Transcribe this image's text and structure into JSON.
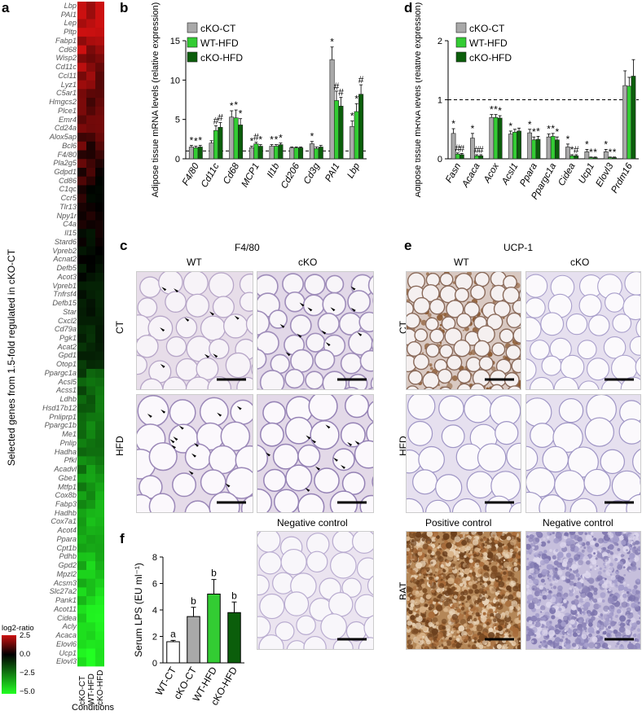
{
  "panel_a": {
    "letter": "a",
    "ylabel": "Selected genes from 1.5-fold regulated in cKO-CT",
    "xlabel": "Conditions",
    "columns": [
      "cKO-CT",
      "WT-HFD",
      "cKO-HFD"
    ],
    "genes": [
      "Lbp",
      "PAI1",
      "Lep",
      "Pltp",
      "Fabp1",
      "Cd68",
      "Wisp2",
      "Cd11c",
      "Ccl11",
      "Lyz1",
      "C5ar1",
      "Hmgcs2",
      "Plce1",
      "Emr4",
      "Cd24a",
      "Alox5ap",
      "Bcl6",
      "F4/80",
      "Pla2g5",
      "Gdpd1",
      "Cd86",
      "C1qc",
      "Ccr5",
      "Tlr13",
      "Npy1r",
      "C4a",
      "Il15",
      "Stard6",
      "Vpreb2",
      "Acnat2",
      "Defb5",
      "Acot3",
      "Vpreb1",
      "Tnfrsf4",
      "Defb15",
      "Star",
      "Cxcl2",
      "Cd79a",
      "Pgk1",
      "Acat2",
      "Gpd1",
      "Otop1",
      "Ppargc1a",
      "Acsl5",
      "Acss1",
      "Ldhb",
      "Hsd17b12",
      "Pnliprp1",
      "Ppargc1b",
      "Me1",
      "Pnlip",
      "Hadha",
      "Pfkl",
      "Acadvl",
      "Gbe1",
      "Mtfp1",
      "Cox8b",
      "Fabp3",
      "Hadhb",
      "Cox7a1",
      "Acot4",
      "Ppara",
      "Cpt1b",
      "Pdhb",
      "Gpd2",
      "Mpzl2",
      "Acsm3",
      "Slc27a2",
      "Pank1",
      "Acot11",
      "Cidea",
      "Acly",
      "Acaca",
      "Elovl6",
      "Ucp1",
      "Elovl3"
    ],
    "legend": {
      "title": "log2-ratio",
      "ticks": [
        "2.5",
        "0.0",
        "−2.5",
        "−5.0"
      ]
    },
    "colors": {
      "up": "#cc1010",
      "zero": "#000000",
      "down": "#22ff22"
    }
  },
  "panel_b": {
    "letter": "b",
    "ylabel": "Adipose tissue mRNA levels (relative expression)",
    "legend": [
      "cKO-CT",
      "WT-HFD",
      "cKO-HFD"
    ],
    "chart_data": {
      "type": "bar",
      "ylim": [
        0,
        15
      ],
      "yticks": [
        "0",
        "5",
        "10",
        "15"
      ],
      "categories": [
        "F4/80",
        "Cd11c",
        "Cd68",
        "MCP1",
        "Il1b",
        "Cd206",
        "Cd3g",
        "PAI1",
        "Lbp"
      ],
      "series": [
        {
          "name": "cKO-CT",
          "values": [
            1.5,
            2.0,
            5.3,
            1.4,
            1.6,
            1.4,
            1.9,
            12.6,
            4.1
          ],
          "err": [
            0.2,
            0.3,
            0.8,
            0.2,
            0.2,
            0.1,
            0.3,
            1.6,
            0.7
          ]
        },
        {
          "name": "WT-HFD",
          "values": [
            1.4,
            3.6,
            5.2,
            1.9,
            1.6,
            1.4,
            1.3,
            7.4,
            6.0
          ],
          "err": [
            0.2,
            0.6,
            1.0,
            0.2,
            0.2,
            0.1,
            0.2,
            1.2,
            1.0
          ]
        },
        {
          "name": "cKO-HFD",
          "values": [
            1.5,
            4.0,
            4.3,
            1.6,
            1.8,
            1.4,
            1.5,
            6.7,
            8.2
          ],
          "err": [
            0.2,
            0.6,
            0.8,
            0.2,
            0.2,
            0.1,
            0.2,
            1.1,
            1.2
          ]
        }
      ],
      "sig": [
        [
          "*",
          "*",
          "*"
        ],
        [
          "",
          "#",
          "#"
        ],
        [
          "*",
          "*",
          "*"
        ],
        [
          "*",
          "#",
          "*"
        ],
        [
          "*",
          "*",
          "*"
        ],
        [
          "",
          "",
          ""
        ],
        [
          "*",
          "",
          ""
        ],
        [
          "*",
          "#",
          "#"
        ],
        [
          "*",
          "*",
          "#"
        ]
      ],
      "reference_line": 1,
      "colors": [
        "#a9a9a9",
        "#33cc33",
        "#0b5e0b"
      ]
    }
  },
  "panel_d": {
    "letter": "d",
    "ylabel": "Adipose tissue mRNA levels (relative expression)",
    "legend": [
      "cKO-CT",
      "WT-HFD",
      "cKO-HFD"
    ],
    "chart_data": {
      "type": "bar",
      "ylim": [
        0,
        2
      ],
      "yticks": [
        "0",
        "1",
        "2"
      ],
      "categories": [
        "Fasn",
        "Acaca",
        "Acox",
        "Acsl1",
        "Ppara",
        "Ppargc1a",
        "Cidea",
        "Ucp1",
        "Elovl3",
        "Prdm16"
      ],
      "series": [
        {
          "name": "cKO-CT",
          "values": [
            0.43,
            0.35,
            0.7,
            0.42,
            0.44,
            0.37,
            0.2,
            0.12,
            0.12,
            1.24
          ],
          "err": [
            0.08,
            0.08,
            0.05,
            0.05,
            0.06,
            0.05,
            0.05,
            0.04,
            0.04,
            0.25
          ]
        },
        {
          "name": "WT-HFD",
          "values": [
            0.08,
            0.05,
            0.7,
            0.45,
            0.32,
            0.38,
            0.05,
            0.02,
            0.02,
            1.23
          ],
          "err": [
            0.02,
            0.02,
            0.05,
            0.05,
            0.05,
            0.05,
            0.02,
            0.01,
            0.01,
            0.15
          ]
        },
        {
          "name": "cKO-HFD",
          "values": [
            0.07,
            0.05,
            0.69,
            0.47,
            0.33,
            0.32,
            0.05,
            0.02,
            0.02,
            1.4
          ],
          "err": [
            0.02,
            0.02,
            0.04,
            0.05,
            0.05,
            0.05,
            0.02,
            0.01,
            0.01,
            0.28
          ]
        }
      ],
      "sig": [
        [
          "*",
          "#",
          "#"
        ],
        [
          "*",
          "#",
          "#"
        ],
        [
          "*",
          "*",
          "*"
        ],
        [
          "*",
          "",
          ""
        ],
        [
          "*",
          "*",
          "*"
        ],
        [
          "*",
          "*",
          "*"
        ],
        [
          "*",
          "*",
          "#"
        ],
        [
          "*",
          "*",
          "*"
        ],
        [
          "*",
          "*",
          "*"
        ],
        [
          "",
          "",
          ""
        ]
      ],
      "reference_line": 1,
      "colors": [
        "#a9a9a9",
        "#33cc33",
        "#0b5e0b"
      ]
    }
  },
  "panel_c": {
    "letter": "c",
    "title": "F4/80",
    "col_labels": [
      "WT",
      "cKO"
    ],
    "row_labels": [
      "CT",
      "HFD"
    ],
    "neg_control": "Negative control"
  },
  "panel_e": {
    "letter": "e",
    "title": "UCP-1",
    "col_labels": [
      "WT",
      "cKO"
    ],
    "row_labels": [
      "CT",
      "HFD",
      "BAT"
    ],
    "pos_control": "Positive control",
    "neg_control": "Negative control"
  },
  "panel_f": {
    "letter": "f",
    "ylabel": "Serum LPS (EU ml⁻¹)",
    "chart_data": {
      "type": "bar",
      "ylim": [
        0,
        8
      ],
      "yticks": [
        "0",
        "2",
        "4",
        "6",
        "8"
      ],
      "categories": [
        "WT-CT",
        "cKO-CT",
        "WT-HFD",
        "cKO-HFD"
      ],
      "values": [
        1.6,
        3.5,
        5.2,
        3.8
      ],
      "err": [
        0.1,
        0.7,
        1.1,
        0.8
      ],
      "letters": [
        "a",
        "b",
        "b",
        "b"
      ],
      "colors": [
        "#ffffff",
        "#a9a9a9",
        "#33cc33",
        "#0b5e0b"
      ]
    }
  }
}
